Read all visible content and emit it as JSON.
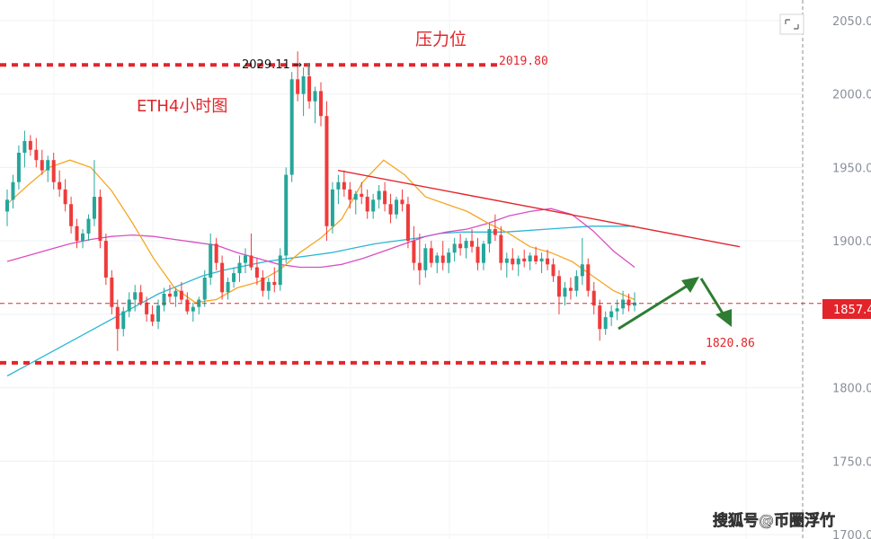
{
  "chart_data": {
    "type": "candlestick",
    "title": "ETH4小时图",
    "annotations": {
      "resistance_label": "压力位",
      "resistance_price": "2019.80",
      "high_price": "2029.11",
      "support_price": "1820.86",
      "current_price": "1857.4"
    },
    "y_axis": {
      "ticks": [
        "2050.0",
        "2000.0",
        "1950.0",
        "1900.0",
        "1850.0",
        "1800.0",
        "1750.0",
        "1700.0"
      ],
      "ylim": [
        1697,
        2064
      ]
    },
    "levels": {
      "resistance": 2019.8,
      "support": 1820.86,
      "current": 1857.4
    },
    "candles": [
      [
        1920,
        1935,
        1910,
        1928
      ],
      [
        1928,
        1945,
        1922,
        1940
      ],
      [
        1940,
        1965,
        1935,
        1960
      ],
      [
        1960,
        1975,
        1950,
        1968
      ],
      [
        1968,
        1972,
        1958,
        1962
      ],
      [
        1962,
        1970,
        1950,
        1955
      ],
      [
        1955,
        1962,
        1945,
        1948
      ],
      [
        1948,
        1958,
        1940,
        1955
      ],
      [
        1955,
        1960,
        1935,
        1940
      ],
      [
        1940,
        1948,
        1930,
        1935
      ],
      [
        1935,
        1942,
        1920,
        1925
      ],
      [
        1925,
        1930,
        1905,
        1910
      ],
      [
        1910,
        1915,
        1895,
        1900
      ],
      [
        1900,
        1908,
        1895,
        1905
      ],
      [
        1905,
        1918,
        1900,
        1915
      ],
      [
        1915,
        1955,
        1910,
        1930
      ],
      [
        1930,
        1935,
        1895,
        1900
      ],
      [
        1900,
        1905,
        1870,
        1875
      ],
      [
        1875,
        1880,
        1850,
        1855
      ],
      [
        1855,
        1860,
        1825,
        1840
      ],
      [
        1840,
        1855,
        1835,
        1852
      ],
      [
        1852,
        1865,
        1848,
        1860
      ],
      [
        1860,
        1870,
        1852,
        1865
      ],
      [
        1865,
        1870,
        1856,
        1858
      ],
      [
        1858,
        1862,
        1845,
        1850
      ],
      [
        1850,
        1856,
        1842,
        1845
      ],
      [
        1845,
        1860,
        1840,
        1856
      ],
      [
        1856,
        1868,
        1852,
        1864
      ],
      [
        1864,
        1870,
        1858,
        1862
      ],
      [
        1862,
        1868,
        1855,
        1866
      ],
      [
        1866,
        1872,
        1858,
        1860
      ],
      [
        1860,
        1865,
        1850,
        1852
      ],
      [
        1852,
        1858,
        1845,
        1855
      ],
      [
        1855,
        1862,
        1850,
        1860
      ],
      [
        1860,
        1880,
        1855,
        1875
      ],
      [
        1875,
        1905,
        1870,
        1898
      ],
      [
        1898,
        1902,
        1880,
        1885
      ],
      [
        1885,
        1890,
        1860,
        1865
      ],
      [
        1865,
        1875,
        1860,
        1872
      ],
      [
        1872,
        1882,
        1868,
        1878
      ],
      [
        1878,
        1890,
        1872,
        1885
      ],
      [
        1885,
        1895,
        1878,
        1890
      ],
      [
        1890,
        1905,
        1880,
        1882
      ],
      [
        1882,
        1888,
        1870,
        1875
      ],
      [
        1875,
        1880,
        1862,
        1866
      ],
      [
        1866,
        1875,
        1860,
        1872
      ],
      [
        1872,
        1882,
        1865,
        1870
      ],
      [
        1870,
        1895,
        1866,
        1890
      ],
      [
        1890,
        1950,
        1885,
        1945
      ],
      [
        1945,
        2015,
        1940,
        2010
      ],
      [
        2010,
        2029,
        1995,
        2000
      ],
      [
        2000,
        2018,
        1985,
        2012
      ],
      [
        2012,
        2020,
        1990,
        1995
      ],
      [
        1995,
        2005,
        1980,
        2002
      ],
      [
        2002,
        2008,
        1978,
        1985
      ],
      [
        1985,
        1995,
        1900,
        1910
      ],
      [
        1910,
        1940,
        1905,
        1935
      ],
      [
        1935,
        1945,
        1925,
        1940
      ],
      [
        1940,
        1948,
        1930,
        1935
      ],
      [
        1935,
        1940,
        1922,
        1928
      ],
      [
        1928,
        1934,
        1918,
        1932
      ],
      [
        1932,
        1940,
        1925,
        1930
      ],
      [
        1930,
        1935,
        1915,
        1920
      ],
      [
        1920,
        1932,
        1915,
        1928
      ],
      [
        1928,
        1938,
        1922,
        1934
      ],
      [
        1934,
        1940,
        1920,
        1925
      ],
      [
        1925,
        1932,
        1912,
        1918
      ],
      [
        1918,
        1930,
        1915,
        1928
      ],
      [
        1928,
        1935,
        1920,
        1925
      ],
      [
        1925,
        1930,
        1895,
        1900
      ],
      [
        1900,
        1910,
        1880,
        1885
      ],
      [
        1885,
        1905,
        1870,
        1880
      ],
      [
        1880,
        1898,
        1875,
        1895
      ],
      [
        1895,
        1900,
        1882,
        1885
      ],
      [
        1885,
        1892,
        1878,
        1890
      ],
      [
        1890,
        1900,
        1880,
        1885
      ],
      [
        1885,
        1895,
        1878,
        1892
      ],
      [
        1892,
        1902,
        1886,
        1898
      ],
      [
        1898,
        1905,
        1890,
        1895
      ],
      [
        1895,
        1902,
        1888,
        1900
      ],
      [
        1900,
        1908,
        1892,
        1896
      ],
      [
        1896,
        1902,
        1880,
        1885
      ],
      [
        1885,
        1900,
        1880,
        1898
      ],
      [
        1898,
        1912,
        1892,
        1908
      ],
      [
        1908,
        1918,
        1900,
        1904
      ],
      [
        1904,
        1910,
        1880,
        1885
      ],
      [
        1885,
        1892,
        1875,
        1888
      ],
      [
        1888,
        1895,
        1880,
        1884
      ],
      [
        1884,
        1890,
        1876,
        1888
      ],
      [
        1888,
        1894,
        1882,
        1886
      ],
      [
        1886,
        1892,
        1880,
        1890
      ],
      [
        1890,
        1896,
        1884,
        1886
      ],
      [
        1886,
        1892,
        1878,
        1888
      ],
      [
        1888,
        1894,
        1880,
        1884
      ],
      [
        1884,
        1888,
        1872,
        1876
      ],
      [
        1876,
        1880,
        1850,
        1862
      ],
      [
        1862,
        1872,
        1856,
        1868
      ],
      [
        1868,
        1875,
        1860,
        1866
      ],
      [
        1866,
        1880,
        1862,
        1876
      ],
      [
        1876,
        1902,
        1870,
        1884
      ],
      [
        1884,
        1888,
        1862,
        1866
      ],
      [
        1866,
        1872,
        1850,
        1856
      ],
      [
        1856,
        1860,
        1832,
        1840
      ],
      [
        1840,
        1852,
        1836,
        1848
      ],
      [
        1848,
        1856,
        1842,
        1852
      ],
      [
        1852,
        1860,
        1846,
        1854
      ],
      [
        1854,
        1866,
        1850,
        1860
      ],
      [
        1860,
        1864,
        1852,
        1856
      ],
      [
        1856,
        1865,
        1852,
        1858
      ]
    ],
    "series": [
      {
        "name": "",
        "color": "#2bb6d6",
        "values": [
          1808,
          1816,
          1824,
          1832,
          1840,
          1848,
          1856,
          1864,
          1870,
          1876,
          1880,
          1883,
          1886,
          1888,
          1890,
          1892,
          1895,
          1898,
          1900,
          1902,
          1905,
          1906,
          1906,
          1906,
          1907,
          1908,
          1909,
          1910,
          1910,
          1910
        ]
      },
      {
        "name": "",
        "color": "#d84fc0",
        "values": [
          1886,
          1890,
          1894,
          1898,
          1901,
          1903,
          1904,
          1903,
          1901,
          1899,
          1897,
          1892,
          1888,
          1884,
          1882,
          1882,
          1884,
          1888,
          1893,
          1898,
          1903,
          1906,
          1908,
          1912,
          1917,
          1920,
          1922,
          1918,
          1907,
          1893,
          1882
        ]
      },
      {
        "name": "",
        "color": "#f5a623",
        "values": [
          1925,
          1938,
          1950,
          1955,
          1950,
          1934,
          1912,
          1888,
          1868,
          1858,
          1860,
          1868,
          1872,
          1880,
          1892,
          1902,
          1915,
          1940,
          1955,
          1945,
          1930,
          1925,
          1920,
          1912,
          1905,
          1896,
          1892,
          1886,
          1876,
          1866,
          1860
        ]
      }
    ]
  }
}
